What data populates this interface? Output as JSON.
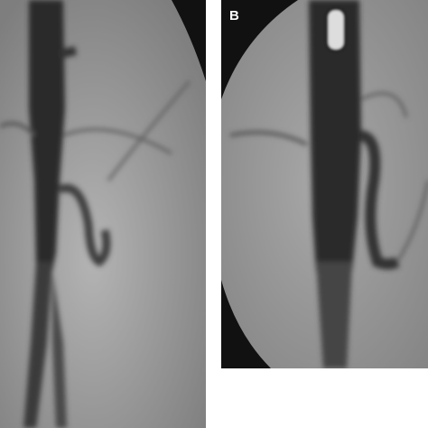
{
  "figure": {
    "label": "B"
  }
}
